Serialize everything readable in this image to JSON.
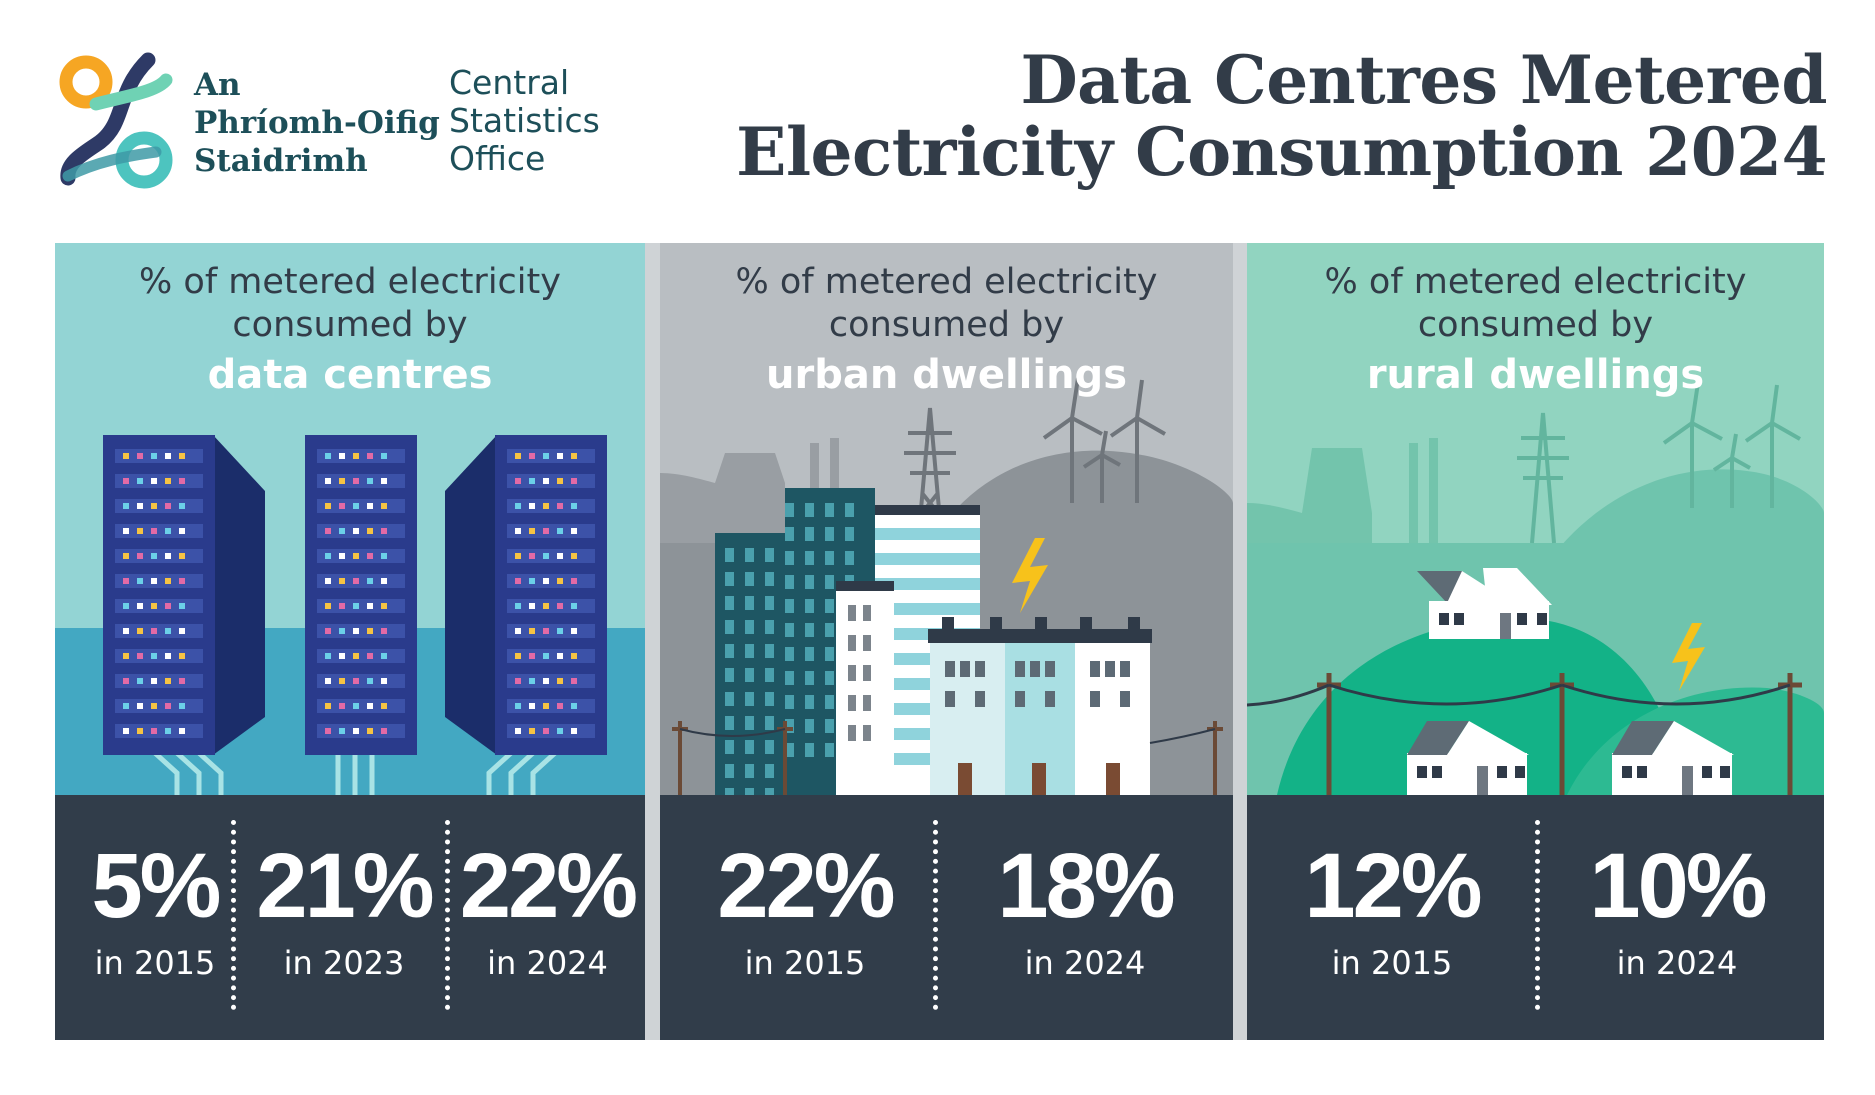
{
  "logo": {
    "irish_lines": [
      "An",
      "Phríomh-Oifig",
      "Staidrimh"
    ],
    "english_lines": [
      "Central",
      "Statistics",
      "Office"
    ]
  },
  "title_lines": [
    "Data Centres Metered",
    "Electricity Consumption 2024"
  ],
  "panels": [
    {
      "caption_lines": [
        "% of metered electricity",
        "consumed by"
      ],
      "highlight": "data centres",
      "background": "#93d4d4",
      "icon": "server-racks-icon",
      "stats": [
        {
          "value": "5%",
          "label": "in 2015"
        },
        {
          "value": "21%",
          "label": "in 2023"
        },
        {
          "value": "22%",
          "label": "in 2024"
        }
      ]
    },
    {
      "caption_lines": [
        "% of metered electricity",
        "consumed by"
      ],
      "highlight": "urban dwellings",
      "background": "#b9bec2",
      "icon": "city-buildings-icon",
      "stats": [
        {
          "value": "22%",
          "label": "in 2015"
        },
        {
          "value": "18%",
          "label": "in 2024"
        }
      ]
    },
    {
      "caption_lines": [
        "% of metered electricity",
        "consumed by"
      ],
      "highlight": "rural dwellings",
      "background": "#91d4c0",
      "icon": "rural-houses-icon",
      "stats": [
        {
          "value": "12%",
          "label": "in 2015"
        },
        {
          "value": "10%",
          "label": "in 2024"
        }
      ]
    }
  ],
  "colors": {
    "title": "#323c48",
    "stats_band": "#313d4a",
    "logo_text": "#1d4f59",
    "logo_orange": "#f6a623",
    "logo_teal": "#4dc4bf",
    "logo_navy": "#2e3a66"
  }
}
